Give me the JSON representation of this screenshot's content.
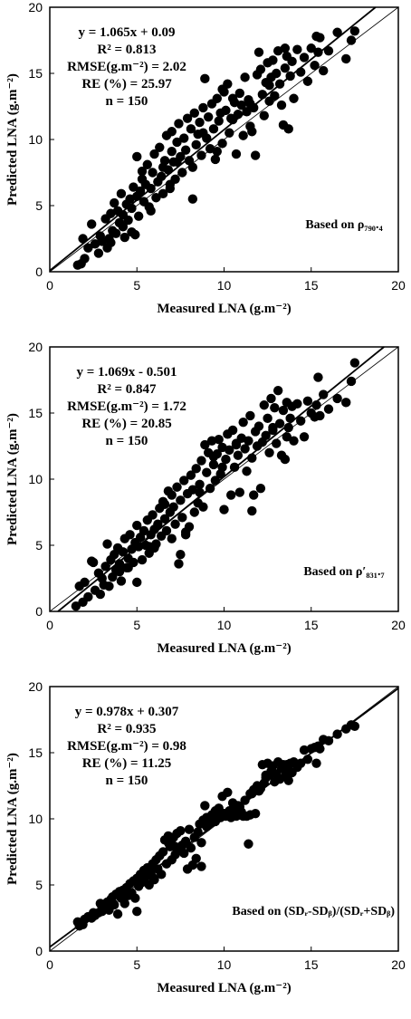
{
  "chart_data": [
    {
      "type": "scatter",
      "title": "",
      "xlabel": "Measured LNA (g.m⁻²)",
      "ylabel": "Predicted LNA (g.m⁻²)",
      "xlim": [
        0,
        20
      ],
      "ylim": [
        0,
        20
      ],
      "xticks": [
        "0",
        "5",
        "10",
        "15",
        "20"
      ],
      "yticks": [
        "0",
        "5",
        "10",
        "15",
        "20"
      ],
      "grid": false,
      "stats": [
        "y = 1.065x + 0.09",
        "R² = 0.813",
        "RMSE(g.m⁻²) = 2.02",
        "RE (%) = 25.97",
        "n = 150"
      ],
      "note": "Based on ρ₇₉₀.₄",
      "fit_line": {
        "slope": 1.065,
        "intercept": 0.09
      },
      "reference_line": {
        "slope": 1,
        "intercept": 0
      },
      "x": [
        1.6,
        1.8,
        1.9,
        2.0,
        2.2,
        2.4,
        2.6,
        2.8,
        2.9,
        3.0,
        3.2,
        3.3,
        3.4,
        3.5,
        3.6,
        3.7,
        3.8,
        3.9,
        4.0,
        4.1,
        4.2,
        4.3,
        4.4,
        4.5,
        4.6,
        4.7,
        4.8,
        4.9,
        5.0,
        5.0,
        5.1,
        5.2,
        5.3,
        5.4,
        5.5,
        5.6,
        5.7,
        5.8,
        5.9,
        6.0,
        6.1,
        6.2,
        6.3,
        6.4,
        6.5,
        6.6,
        6.7,
        6.8,
        6.9,
        7.0,
        7.0,
        7.1,
        7.2,
        7.3,
        7.4,
        7.5,
        7.6,
        7.7,
        7.8,
        7.9,
        8.0,
        8.1,
        8.2,
        8.3,
        8.4,
        8.5,
        8.6,
        8.7,
        8.8,
        8.9,
        9.0,
        9.1,
        9.2,
        9.3,
        9.4,
        9.5,
        9.6,
        9.7,
        9.8,
        9.9,
        10.0,
        10.1,
        10.2,
        10.3,
        10.4,
        10.5,
        10.6,
        10.7,
        10.8,
        10.9,
        11.0,
        11.1,
        11.2,
        11.3,
        11.4,
        11.5,
        11.6,
        11.7,
        11.8,
        11.9,
        12.0,
        12.1,
        12.2,
        12.3,
        12.4,
        12.5,
        12.6,
        12.7,
        12.8,
        12.9,
        13.0,
        13.1,
        13.2,
        13.3,
        13.4,
        13.5,
        13.6,
        13.7,
        13.8,
        13.9,
        14.0,
        14.2,
        14.4,
        14.6,
        14.8,
        15.0,
        15.2,
        15.3,
        15.4,
        15.5,
        15.7,
        16.0,
        16.5,
        17.0,
        17.3,
        17.5,
        3.5,
        4.2,
        5.8,
        6.5,
        7.3,
        8.8,
        9.6,
        10.5,
        11.5,
        12.6,
        13.5,
        8.2,
        6.9,
        5.3,
        4.7,
        9.9
      ],
      "y": [
        0.5,
        0.6,
        2.5,
        1.0,
        1.8,
        3.6,
        2.1,
        1.4,
        2.7,
        2.3,
        4.0,
        1.8,
        2.5,
        4.4,
        3.1,
        5.2,
        2.9,
        4.6,
        3.7,
        5.9,
        4.3,
        2.6,
        5.1,
        3.9,
        5.5,
        4.8,
        6.4,
        2.8,
        5.7,
        8.7,
        4.2,
        6.1,
        7.0,
        5.3,
        6.6,
        8.1,
        4.9,
        6.3,
        7.5,
        8.9,
        5.6,
        6.8,
        9.4,
        7.2,
        5.9,
        8.4,
        10.3,
        7.7,
        6.6,
        9.1,
        10.6,
        8.3,
        7.0,
        9.8,
        11.2,
        8.7,
        7.5,
        10.1,
        9.2,
        11.6,
        8.4,
        10.8,
        7.9,
        12.0,
        9.6,
        10.4,
        11.3,
        8.8,
        12.4,
        14.6,
        10.1,
        11.7,
        9.3,
        12.7,
        10.8,
        8.5,
        13.1,
        11.4,
        12.0,
        9.7,
        13.6,
        12.2,
        14.2,
        10.5,
        11.6,
        13.1,
        12.8,
        8.9,
        11.9,
        13.5,
        12.6,
        10.3,
        14.7,
        12.1,
        13.0,
        11.0,
        10.6,
        12.4,
        8.8,
        14.9,
        16.6,
        15.3,
        13.4,
        11.8,
        14.3,
        15.8,
        12.9,
        14.7,
        16.0,
        13.3,
        15.0,
        16.7,
        14.2,
        12.6,
        11.1,
        15.4,
        16.3,
        10.8,
        14.8,
        15.9,
        13.1,
        16.8,
        15.1,
        16.2,
        14.4,
        16.9,
        15.6,
        17.8,
        16.6,
        17.7,
        15.2,
        16.7,
        18.1,
        16.1,
        17.5,
        18.2,
        2.2,
        3.4,
        4.6,
        7.9,
        8.3,
        10.5,
        9.1,
        11.5,
        12.7,
        14.1,
        16.9,
        5.5,
        6.3,
        7.6,
        3.0,
        13.8
      ]
    },
    {
      "type": "scatter",
      "title": "",
      "xlabel": "Measured LNA (g.m⁻²)",
      "ylabel": "Predicted LNA (g.m⁻²)",
      "xlim": [
        0,
        20
      ],
      "ylim": [
        0,
        20
      ],
      "xticks": [
        "0",
        "5",
        "10",
        "15",
        "20"
      ],
      "yticks": [
        "0",
        "5",
        "10",
        "15",
        "20"
      ],
      "grid": false,
      "stats": [
        "y = 1.069x - 0.501",
        "R² = 0.847",
        "RMSE(g.m⁻²) = 1.72",
        "RE (%) = 20.85",
        "n = 150"
      ],
      "note": "Based on ρ′₈₃₁.₇",
      "fit_line": {
        "slope": 1.069,
        "intercept": -0.501
      },
      "reference_line": {
        "slope": 1,
        "intercept": 0
      },
      "x": [
        1.5,
        1.7,
        1.9,
        2.0,
        2.2,
        2.4,
        2.6,
        2.8,
        2.9,
        3.0,
        3.2,
        3.3,
        3.4,
        3.5,
        3.6,
        3.7,
        3.8,
        3.9,
        4.0,
        4.1,
        4.2,
        4.3,
        4.4,
        4.5,
        4.6,
        4.7,
        4.8,
        4.9,
        5.0,
        5.0,
        5.1,
        5.2,
        5.3,
        5.4,
        5.5,
        5.6,
        5.7,
        5.8,
        5.9,
        6.0,
        6.1,
        6.2,
        6.3,
        6.4,
        6.5,
        6.6,
        6.7,
        6.8,
        6.9,
        7.0,
        7.0,
        7.1,
        7.2,
        7.3,
        7.4,
        7.5,
        7.6,
        7.7,
        7.8,
        7.9,
        8.0,
        8.1,
        8.2,
        8.3,
        8.4,
        8.5,
        8.6,
        8.7,
        8.8,
        8.9,
        9.0,
        9.1,
        9.2,
        9.3,
        9.4,
        9.5,
        9.6,
        9.7,
        9.8,
        9.9,
        10.0,
        10.1,
        10.2,
        10.3,
        10.4,
        10.5,
        10.6,
        10.7,
        10.8,
        10.9,
        11.0,
        11.1,
        11.2,
        11.3,
        11.4,
        11.5,
        11.6,
        11.7,
        11.8,
        11.9,
        12.0,
        12.1,
        12.2,
        12.3,
        12.4,
        12.5,
        12.6,
        12.7,
        12.8,
        12.9,
        13.0,
        13.1,
        13.2,
        13.3,
        13.4,
        13.5,
        13.6,
        13.7,
        13.8,
        13.9,
        14.0,
        14.2,
        14.4,
        14.6,
        14.8,
        15.0,
        15.2,
        15.3,
        15.4,
        15.5,
        15.7,
        16.0,
        16.5,
        17.0,
        17.3,
        17.5,
        3.1,
        4.5,
        5.7,
        6.6,
        7.5,
        8.6,
        9.4,
        10.7,
        11.6,
        12.8,
        13.6,
        2.5,
        6.0,
        7.8,
        4.0,
        9.9
      ],
      "y": [
        0.4,
        1.9,
        0.7,
        2.2,
        1.1,
        3.8,
        1.6,
        2.9,
        1.3,
        2.5,
        3.4,
        5.1,
        1.9,
        3.9,
        2.6,
        4.3,
        3.1,
        4.8,
        3.6,
        2.3,
        4.5,
        5.5,
        3.3,
        4.0,
        5.8,
        4.7,
        3.7,
        5.2,
        2.2,
        6.5,
        4.9,
        5.6,
        3.9,
        6.1,
        5.0,
        6.9,
        4.4,
        5.8,
        7.3,
        6.2,
        5.1,
        6.6,
        7.8,
        5.7,
        8.3,
        7.0,
        6.1,
        9.1,
        7.5,
        5.5,
        8.8,
        7.9,
        6.6,
        9.4,
        3.6,
        8.4,
        7.1,
        9.9,
        5.8,
        8.9,
        6.4,
        10.3,
        9.2,
        7.5,
        10.8,
        8.2,
        9.6,
        11.4,
        7.9,
        12.6,
        10.5,
        12.0,
        9.3,
        12.9,
        11.1,
        9.9,
        11.9,
        13.0,
        10.4,
        12.4,
        7.7,
        11.5,
        13.4,
        12.2,
        8.8,
        13.7,
        10.9,
        12.7,
        11.8,
        9.0,
        13.1,
        14.3,
        12.3,
        10.6,
        12.9,
        14.8,
        11.6,
        8.8,
        13.6,
        12.5,
        14.0,
        9.3,
        12.8,
        15.6,
        13.3,
        14.6,
        12.0,
        16.1,
        13.9,
        15.4,
        12.7,
        16.7,
        14.2,
        11.8,
        15.2,
        11.5,
        15.8,
        13.9,
        14.6,
        15.5,
        12.9,
        15.7,
        14.4,
        13.2,
        15.9,
        15.0,
        14.7,
        15.6,
        17.7,
        14.8,
        16.4,
        15.3,
        16.1,
        15.8,
        17.4,
        18.8,
        2.0,
        3.3,
        4.9,
        8.1,
        4.3,
        9.0,
        11.7,
        12.6,
        7.6,
        13.7,
        13.2,
        3.7,
        4.8,
        6.0,
        3.0,
        10.9
      ]
    },
    {
      "type": "scatter",
      "title": "",
      "xlabel": "Measured LNA (g.m⁻²)",
      "ylabel": "Predicted LNA (g.m⁻²)",
      "xlim": [
        0,
        20
      ],
      "ylim": [
        0,
        20
      ],
      "xticks": [
        "0",
        "5",
        "10",
        "15",
        "20"
      ],
      "yticks": [
        "0",
        "5",
        "10",
        "15",
        "20"
      ],
      "grid": false,
      "stats": [
        "y = 0.978x + 0.307",
        "R² = 0.935",
        "RMSE(g.m⁻²) = 0.98",
        "RE (%) = 11.25",
        "n = 150"
      ],
      "note": "Based on (SDᵣ-SDᵦ)/(SDᵣ+SDᵦ)",
      "fit_line": {
        "slope": 0.978,
        "intercept": 0.307
      },
      "reference_line": {
        "slope": 1,
        "intercept": 0
      },
      "x": [
        1.6,
        1.7,
        1.9,
        2.0,
        2.2,
        2.4,
        2.6,
        2.8,
        2.9,
        3.0,
        3.2,
        3.3,
        3.4,
        3.5,
        3.6,
        3.7,
        3.8,
        3.9,
        4.0,
        4.1,
        4.2,
        4.3,
        4.4,
        4.5,
        4.6,
        4.7,
        4.8,
        4.9,
        5.0,
        5.0,
        5.1,
        5.2,
        5.3,
        5.4,
        5.5,
        5.6,
        5.7,
        5.8,
        5.9,
        6.0,
        6.1,
        6.2,
        6.3,
        6.4,
        6.5,
        6.6,
        6.7,
        6.8,
        6.9,
        7.0,
        7.0,
        7.1,
        7.2,
        7.3,
        7.4,
        7.5,
        7.6,
        7.7,
        7.8,
        7.9,
        8.0,
        8.1,
        8.2,
        8.3,
        8.4,
        8.5,
        8.6,
        8.7,
        8.8,
        8.9,
        9.0,
        9.1,
        9.2,
        9.3,
        9.4,
        9.5,
        9.6,
        9.7,
        9.8,
        9.9,
        10.0,
        10.1,
        10.2,
        10.3,
        10.4,
        10.5,
        10.6,
        10.7,
        10.8,
        10.9,
        11.0,
        11.1,
        11.2,
        11.3,
        11.4,
        11.5,
        11.6,
        11.7,
        11.8,
        11.9,
        12.0,
        12.1,
        12.2,
        12.3,
        12.4,
        12.5,
        12.6,
        12.7,
        12.8,
        12.9,
        13.0,
        13.1,
        13.2,
        13.3,
        13.4,
        13.5,
        13.6,
        13.7,
        13.8,
        13.9,
        14.0,
        14.2,
        14.4,
        14.6,
        14.8,
        15.0,
        15.2,
        15.3,
        15.4,
        15.5,
        15.7,
        16.0,
        16.5,
        17.0,
        17.3,
        17.5,
        3.0,
        4.4,
        5.9,
        6.8,
        7.6,
        8.7,
        9.5,
        10.6,
        11.5,
        12.4,
        13.6,
        2.5,
        5.3,
        7.2,
        9.0,
        10.9
      ],
      "y": [
        2.2,
        1.9,
        2.0,
        2.4,
        2.6,
        2.5,
        2.7,
        2.9,
        3.6,
        3.0,
        3.4,
        3.7,
        3.1,
        3.9,
        4.1,
        3.5,
        4.3,
        2.8,
        4.5,
        4.0,
        4.6,
        3.6,
        4.8,
        4.2,
        5.1,
        4.4,
        5.3,
        4.0,
        5.5,
        3.0,
        4.9,
        5.8,
        5.2,
        6.1,
        5.6,
        6.3,
        5.0,
        6.0,
        6.6,
        5.4,
        6.9,
        6.2,
        7.2,
        5.8,
        7.5,
        8.4,
        6.6,
        8.7,
        7.9,
        6.9,
        8.1,
        8.6,
        7.3,
        8.9,
        7.7,
        9.1,
        8.0,
        7.4,
        8.3,
        6.2,
        9.2,
        7.8,
        6.5,
        8.6,
        7.0,
        9.0,
        9.6,
        8.2,
        9.9,
        11.0,
        9.4,
        10.1,
        9.7,
        10.3,
        10.0,
        10.6,
        10.2,
        10.8,
        10.1,
        11.7,
        10.4,
        10.2,
        12.0,
        10.6,
        10.1,
        11.2,
        10.4,
        10.2,
        11.0,
        10.3,
        10.5,
        10.2,
        11.4,
        10.2,
        8.1,
        10.3,
        11.9,
        12.2,
        10.4,
        12.5,
        12.1,
        12.3,
        14.1,
        12.7,
        13.1,
        14.2,
        13.3,
        13.6,
        14.0,
        12.8,
        13.4,
        14.3,
        13.0,
        13.8,
        14.1,
        13.2,
        13.7,
        12.9,
        14.2,
        13.5,
        14.3,
        13.9,
        14.2,
        15.2,
        14.5,
        15.3,
        15.4,
        14.2,
        15.5,
        15.3,
        16.0,
        15.9,
        16.4,
        16.8,
        17.1,
        17.0,
        3.3,
        4.3,
        5.6,
        8.2,
        8.0,
        6.4,
        9.8,
        11.0,
        11.9,
        13.3,
        14.1,
        2.9,
        5.8,
        7.9,
        10.1,
        10.9
      ]
    }
  ]
}
